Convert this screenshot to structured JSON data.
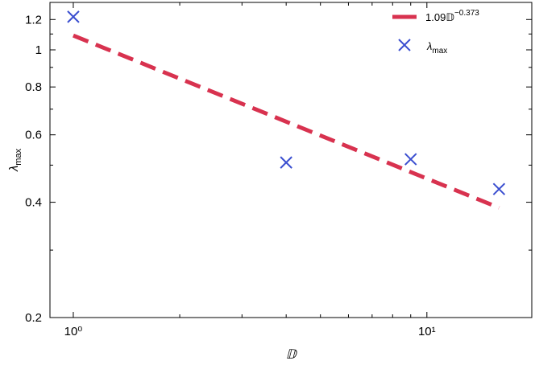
{
  "chart_data": {
    "type": "scatter",
    "x_label": "𝔻",
    "y_label": {
      "main": "λ",
      "sub": "max"
    },
    "xscale": "log",
    "yscale": "log",
    "xlim": [
      0.859,
      19.8
    ],
    "ylim": [
      0.2,
      1.33
    ],
    "xticks": [
      {
        "value": 1,
        "label": "10⁰"
      },
      {
        "value": 10,
        "label": "10¹"
      }
    ],
    "xminorticks": [
      2,
      3,
      4,
      5,
      6,
      7,
      8,
      9
    ],
    "yticks": [
      0.2,
      0.4,
      0.6,
      0.8,
      1,
      1.2
    ],
    "yminorticks": [
      0.3,
      0.5,
      0.7,
      0.9,
      1.1
    ],
    "legend": "upper right",
    "series": [
      {
        "name": "1.09𝔻",
        "name_exponent": "−0.373",
        "kind": "line",
        "color": "#d8324f",
        "x": [
          1,
          16
        ],
        "values": [
          1.09,
          0.387
        ]
      },
      {
        "name": "λ",
        "name_sub": "max",
        "kind": "marker",
        "color": "#3b4fd0",
        "x": [
          1,
          4,
          9,
          16
        ],
        "values": [
          1.22,
          0.508,
          0.518,
          0.433
        ]
      }
    ]
  }
}
